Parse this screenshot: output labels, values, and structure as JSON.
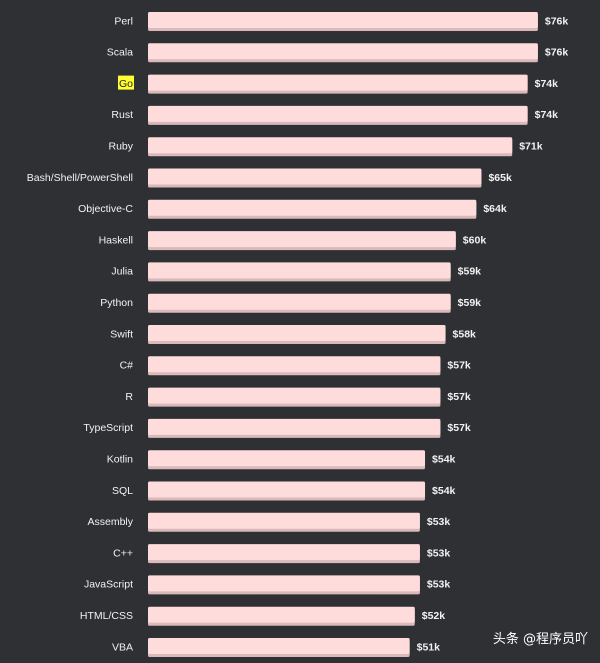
{
  "chart_data": {
    "type": "bar",
    "orientation": "horizontal",
    "categories": [
      "Perl",
      "Scala",
      "Go",
      "Rust",
      "Ruby",
      "Bash/Shell/PowerShell",
      "Objective-C",
      "Haskell",
      "Julia",
      "Python",
      "Swift",
      "C#",
      "R",
      "TypeScript",
      "Kotlin",
      "SQL",
      "Assembly",
      "C++",
      "JavaScript",
      "HTML/CSS",
      "VBA"
    ],
    "values": [
      76,
      76,
      74,
      74,
      71,
      65,
      64,
      60,
      59,
      59,
      58,
      57,
      57,
      57,
      54,
      54,
      53,
      53,
      53,
      52,
      51
    ],
    "value_labels": [
      "$76k",
      "$76k",
      "$74k",
      "$74k",
      "$71k",
      "$65k",
      "$64k",
      "$60k",
      "$59k",
      "$59k",
      "$58k",
      "$57k",
      "$57k",
      "$57k",
      "$54k",
      "$54k",
      "$53k",
      "$53k",
      "$53k",
      "$52k",
      "$51k"
    ],
    "highlighted_category": "Go",
    "title": "",
    "xlabel": "",
    "ylabel": "",
    "grid": false,
    "legend": "none"
  },
  "colors": {
    "background": "#2e3033",
    "bar": "#ffdcdc",
    "bar_shadow": "#d9b9b9",
    "label_text": "#f2f2f2",
    "highlight": "#ffff33"
  },
  "watermark": "头条 @程序员吖"
}
